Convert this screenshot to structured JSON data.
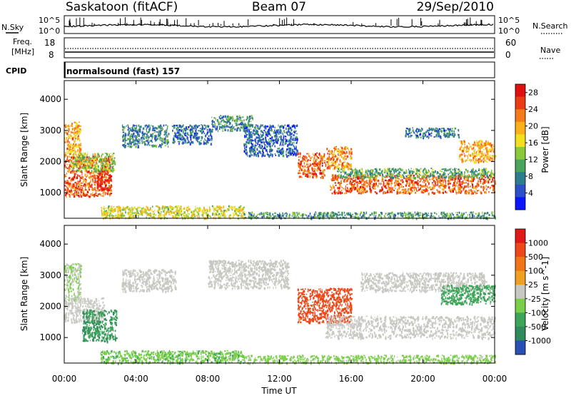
{
  "header": {
    "station": "Saskatoon (fitACF)",
    "beam": "Beam 07",
    "date": "29/Sep/2010"
  },
  "noise_panel": {
    "left_label": "N.Sky",
    "right_label": "N.Search",
    "ticks": [
      "10^5",
      "10^0"
    ]
  },
  "freq_panel": {
    "left_label_line1": "Freq.",
    "left_label_line2": "[MHz]",
    "left_ticks": [
      "18",
      "8"
    ],
    "right_ticks": [
      "60",
      "0"
    ],
    "right_label": "Nave"
  },
  "cpid_panel": {
    "label": "CPID",
    "program": "normalsound (fast) 157"
  },
  "chart_data": [
    {
      "type": "heatmap",
      "title": "",
      "xlabel": "Time UT",
      "ylabel": "Slant Range [km]",
      "xlim": [
        "00:00",
        "24:00"
      ],
      "ylim": [
        180,
        4600
      ],
      "x_ticks": [
        "00:00",
        "04:00",
        "08:00",
        "12:00",
        "16:00",
        "20:00",
        "00:00"
      ],
      "y_ticks": [
        1000,
        2000,
        3000,
        4000
      ],
      "colorbar": {
        "label": "Power [dB]",
        "ticks": [
          4,
          8,
          12,
          16,
          20,
          24,
          28
        ],
        "range": [
          0,
          30
        ],
        "colors": [
          "#0b16ff",
          "#2d4fc9",
          "#2e7d8e",
          "#4aa35a",
          "#8cc83c",
          "#f0e020",
          "#fbb01a",
          "#f57a18",
          "#ea3b14",
          "#e01010"
        ]
      },
      "regions": [
        {
          "t0": 0.0,
          "t1": 0.9,
          "r0": 2200,
          "r1": 3300,
          "value": 20
        },
        {
          "t0": 0.0,
          "t1": 2.6,
          "r0": 900,
          "r1": 2200,
          "value": 24
        },
        {
          "t0": 0.4,
          "t1": 2.8,
          "r0": 1700,
          "r1": 2300,
          "value": 14
        },
        {
          "t0": 1.8,
          "t1": 2.6,
          "r0": 1100,
          "r1": 1700,
          "value": 28
        },
        {
          "t0": 3.2,
          "t1": 5.8,
          "r0": 2500,
          "r1": 3200,
          "value": 8
        },
        {
          "t0": 6.0,
          "t1": 8.2,
          "r0": 2600,
          "r1": 3200,
          "value": 6
        },
        {
          "t0": 8.2,
          "t1": 10.5,
          "r0": 3000,
          "r1": 3500,
          "value": 9
        },
        {
          "t0": 10.0,
          "t1": 13.0,
          "r0": 2200,
          "r1": 3200,
          "value": 6
        },
        {
          "t0": 13.0,
          "t1": 14.5,
          "r0": 1500,
          "r1": 2300,
          "value": 24
        },
        {
          "t0": 14.5,
          "t1": 16.0,
          "r0": 1800,
          "r1": 2500,
          "value": 22
        },
        {
          "t0": 14.8,
          "t1": 24.0,
          "r0": 1000,
          "r1": 1600,
          "value": 24
        },
        {
          "t0": 15.2,
          "t1": 24.0,
          "r0": 1500,
          "r1": 1800,
          "value": 11
        },
        {
          "t0": 22.0,
          "t1": 24.0,
          "r0": 2000,
          "r1": 2700,
          "value": 20
        },
        {
          "t0": 19.0,
          "t1": 22.0,
          "r0": 2800,
          "r1": 3100,
          "value": 7
        },
        {
          "t0": 2.0,
          "t1": 10.0,
          "r0": 200,
          "r1": 600,
          "value": 16
        },
        {
          "t0": 10.0,
          "t1": 24.0,
          "r0": 200,
          "r1": 400,
          "value": 10
        }
      ]
    },
    {
      "type": "heatmap",
      "title": "",
      "xlabel": "Time UT",
      "ylabel": "Slant Range [km]",
      "xlim": [
        "00:00",
        "24:00"
      ],
      "ylim": [
        180,
        4600
      ],
      "x_ticks": [
        "00:00",
        "04:00",
        "08:00",
        "12:00",
        "16:00",
        "20:00",
        "00:00"
      ],
      "y_ticks": [
        1000,
        2000,
        3000,
        4000
      ],
      "colorbar": {
        "label": "Velocity [m s^-1]",
        "ticks": [
          "1000",
          "500",
          "100",
          "25",
          "-25",
          "-100",
          "-500",
          "-1000"
        ],
        "colors": [
          "#2a4fb5",
          "#2f8a5c",
          "#3da55a",
          "#7acf48",
          "#c8c8c2",
          "#f0a020",
          "#f07418",
          "#ee4818",
          "#e01818"
        ]
      },
      "regions": [
        {
          "t0": 0.0,
          "t1": 0.9,
          "r0": 2200,
          "r1": 3400,
          "value": 25
        },
        {
          "t0": 0.0,
          "t1": 2.2,
          "r0": 1500,
          "r1": 2300,
          "value": 0
        },
        {
          "t0": 1.0,
          "t1": 2.9,
          "r0": 900,
          "r1": 1900,
          "value": 300
        },
        {
          "t0": 3.2,
          "t1": 6.2,
          "r0": 2500,
          "r1": 3200,
          "value": 0
        },
        {
          "t0": 8.0,
          "t1": 12.5,
          "r0": 2600,
          "r1": 3500,
          "value": 0
        },
        {
          "t0": 13.0,
          "t1": 16.0,
          "r0": 1500,
          "r1": 2600,
          "value": -700
        },
        {
          "t0": 14.5,
          "t1": 24.0,
          "r0": 1000,
          "r1": 1700,
          "value": 0
        },
        {
          "t0": 16.5,
          "t1": 23.5,
          "r0": 2500,
          "r1": 3100,
          "value": 0
        },
        {
          "t0": 21.0,
          "t1": 24.0,
          "r0": 2100,
          "r1": 2700,
          "value": 200
        },
        {
          "t0": 2.0,
          "t1": 10.0,
          "r0": 200,
          "r1": 600,
          "value": 50
        },
        {
          "t0": 10.0,
          "t1": 24.0,
          "r0": 200,
          "r1": 450,
          "value": 40
        }
      ]
    }
  ]
}
